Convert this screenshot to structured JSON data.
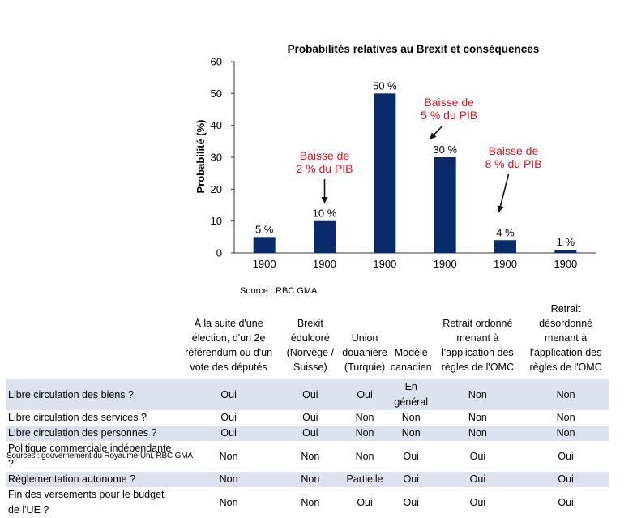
{
  "chart_data": {
    "type": "bar",
    "title": "Probabilités relatives au Brexit et conséquences",
    "ylabel": "Probabilité (%)",
    "xlabel": "",
    "ylim": [
      0,
      60
    ],
    "yticks": [
      "0",
      "10",
      "20",
      "30",
      "40",
      "50",
      "60"
    ],
    "grid": false,
    "bar_color": "#0a2b6b",
    "categories": [
      "1900",
      "1900",
      "1900",
      "1900",
      "1900",
      "1900"
    ],
    "values": [
      5,
      10,
      50,
      30,
      4,
      1
    ],
    "data_labels": [
      "5 %",
      "10 %",
      "50 %",
      "30 %",
      "4 %",
      "1 %"
    ],
    "annotations": [
      {
        "text": [
          "Baisse de",
          "2 % du PIB"
        ],
        "bar_index": 1,
        "color": "#e8101a"
      },
      {
        "text": [
          "Baisse de",
          "5 % du PIB"
        ],
        "bar_index": 3,
        "color": "#e8101a"
      },
      {
        "text": [
          "Baisse de",
          "8 % du PIB"
        ],
        "bar_index": 4,
        "color": "#e8101a"
      }
    ]
  },
  "source_chart": "Source : RBC GMA",
  "table": {
    "columns": [
      "À la suite d'une élection, d'un 2e référendum ou d'un vote des députés",
      "Brexit édulcoré (Norvège / Suisse)",
      "Union douanière (Turquie)",
      "Modèle canadien",
      "Retrait ordonné menant à l'application des règles de l'OMC",
      "Retrait désordonné menant à l'application des règles de l'OMC"
    ],
    "rows": [
      {
        "label": "Libre circulation des biens ?",
        "values": [
          "Oui",
          "Oui",
          "Oui",
          "En général",
          "Non",
          "Non"
        ]
      },
      {
        "label": "Libre circulation des services ?",
        "values": [
          "Oui",
          "Oui",
          "Non",
          "Non",
          "Non",
          "Non"
        ]
      },
      {
        "label": "Libre circulation des personnes ?",
        "values": [
          "Oui",
          "Oui",
          "Non",
          "Non",
          "Non",
          "Non"
        ]
      },
      {
        "label": "Politique commerciale indépendante ?",
        "values": [
          "Non",
          "Non",
          "Non",
          "Oui",
          "Oui",
          "Oui"
        ]
      },
      {
        "label": "Réglementation autonome ?",
        "values": [
          "Non",
          "Non",
          "Partielle",
          "Oui",
          "Oui",
          "Oui"
        ]
      },
      {
        "label": "Fin des versements pour le budget de l'UE ?",
        "values": [
          "Non",
          "Non",
          "Oui",
          "Oui",
          "Oui",
          "Oui"
        ]
      }
    ]
  },
  "source_table": "Sources : gouvernement du Royaume-Uni, RBC GMA"
}
